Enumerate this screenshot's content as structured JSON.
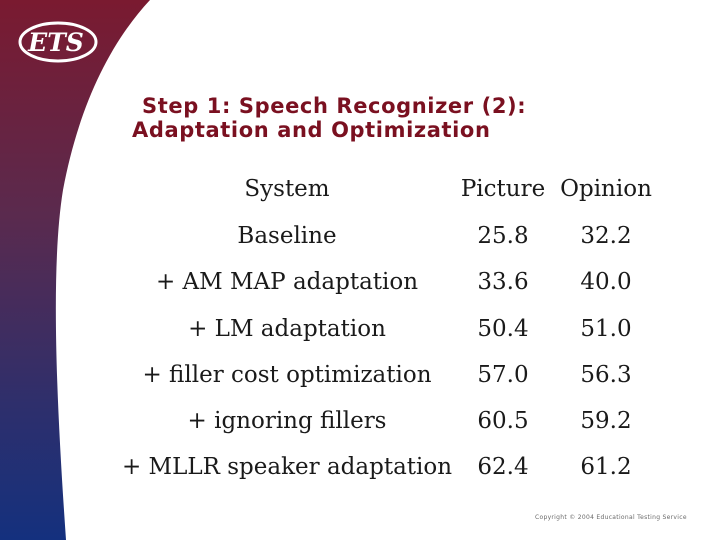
{
  "logo": {
    "text": "ETS"
  },
  "title": {
    "line1": "Step 1: Speech Recognizer (2):",
    "line2": "Adaptation and Optimization"
  },
  "table": {
    "headers": [
      "System",
      "Picture",
      "Opinion"
    ],
    "rows": [
      {
        "system": "Baseline",
        "picture": "25.8",
        "opinion": "32.2"
      },
      {
        "system": "+ AM MAP adaptation",
        "picture": "33.6",
        "opinion": "40.0"
      },
      {
        "system": "+ LM adaptation",
        "picture": "50.4",
        "opinion": "51.0"
      },
      {
        "system": "+ filler cost optimization",
        "picture": "57.0",
        "opinion": "56.3"
      },
      {
        "system": "+ ignoring fillers",
        "picture": "60.5",
        "opinion": "59.2"
      },
      {
        "system": "+ MLLR speaker adaptation",
        "picture": "62.4",
        "opinion": "61.2"
      }
    ]
  },
  "footer": {
    "copyright": "Copyright © 2004 Educational Testing Service"
  },
  "colors": {
    "title": "#7a1020",
    "band_top": "#7a1a30",
    "band_bottom": "#1b2f7a"
  }
}
